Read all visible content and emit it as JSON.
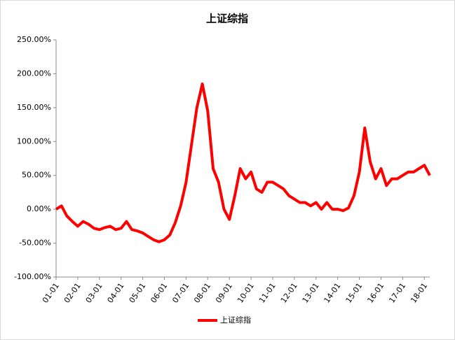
{
  "chart_data": {
    "type": "line",
    "title": "上证综指",
    "categories": [
      "01-01",
      null,
      null,
      null,
      "02-01",
      null,
      null,
      null,
      "03-01",
      null,
      null,
      null,
      "04-01",
      null,
      null,
      null,
      "05-01",
      null,
      null,
      null,
      "06-01",
      null,
      null,
      null,
      "07-01",
      null,
      null,
      null,
      "08-01",
      null,
      null,
      null,
      "09-01",
      null,
      null,
      null,
      "10-01",
      null,
      null,
      null,
      "11-01",
      null,
      null,
      null,
      "12-01",
      null,
      null,
      null,
      "13-01",
      null,
      null,
      null,
      "14-01",
      null,
      null,
      null,
      "15-01",
      null,
      null,
      null,
      "16-01",
      null,
      null,
      null,
      "17-01",
      null,
      null,
      null,
      "18-01",
      null
    ],
    "series": [
      {
        "name": "上证综指",
        "color": "#ff0000",
        "values": [
          0,
          5,
          -10,
          -18,
          -25,
          -18,
          -22,
          -28,
          -30,
          -27,
          -25,
          -30,
          -28,
          -18,
          -30,
          -32,
          -35,
          -40,
          -45,
          -48,
          -45,
          -38,
          -20,
          5,
          40,
          95,
          150,
          185,
          145,
          60,
          40,
          0,
          -15,
          20,
          60,
          45,
          55,
          30,
          25,
          40,
          40,
          35,
          30,
          20,
          15,
          10,
          10,
          5,
          10,
          0,
          10,
          0,
          0,
          -2,
          2,
          20,
          55,
          120,
          70,
          45,
          60,
          35,
          45,
          45,
          50,
          55,
          55,
          60,
          65,
          50
        ]
      }
    ],
    "ylim": [
      -100,
      250
    ],
    "yticks": [
      {
        "value": -100,
        "label": "-100.00%"
      },
      {
        "value": -50,
        "label": "-50.00%"
      },
      {
        "value": 0,
        "label": "0.00%"
      },
      {
        "value": 50,
        "label": "50.00%"
      },
      {
        "value": 100,
        "label": "100.00%"
      },
      {
        "value": 150,
        "label": "150.00%"
      },
      {
        "value": 200,
        "label": "200.00%"
      },
      {
        "value": 250,
        "label": "250.00%"
      }
    ],
    "legend": "bottom"
  }
}
